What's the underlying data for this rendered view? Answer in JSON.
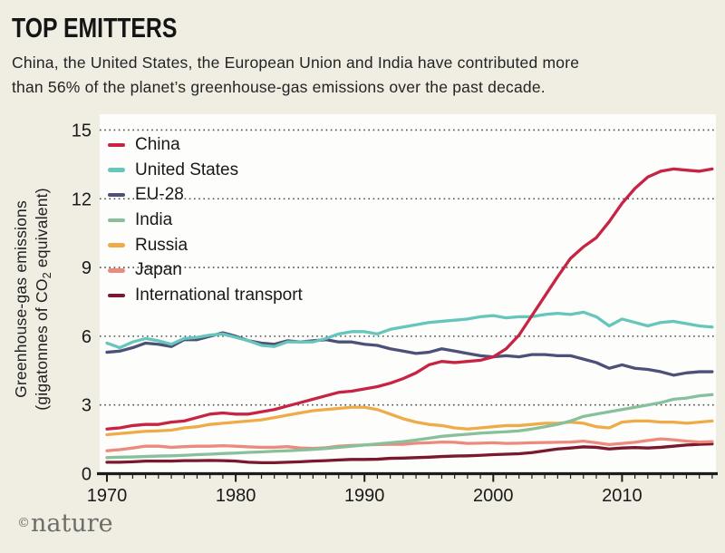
{
  "page": {
    "background": "#f0ede3",
    "plot_background": "#fdfdfb"
  },
  "header": {
    "title": "TOP EMITTERS",
    "subtitle_line1": "China, the United States, the European Union and India have contributed more",
    "subtitle_line2": "than 56% of the planet’s greenhouse-gas emissions over the past decade."
  },
  "footer": {
    "credit_symbol": "©",
    "credit_name": "nature"
  },
  "chart_data": {
    "type": "line",
    "title": "TOP EMITTERS",
    "xlabel": "",
    "ylabel_line1": "Greenhouse-gas emissions",
    "ylabel_line2_pre": "(gigatonnes of CO",
    "ylabel_line2_sub": "2",
    "ylabel_line2_post": " equivalent)",
    "xlim": [
      1970,
      2017
    ],
    "ylim": [
      0,
      15
    ],
    "xticks": [
      1970,
      1980,
      1990,
      2000,
      2010
    ],
    "yticks": [
      0,
      3,
      6,
      9,
      12,
      15
    ],
    "grid": "horizontal-dotted",
    "grid_color": "#4c4c4c",
    "axis_color": "#1c1c1c",
    "legend_position": "top-left-inside",
    "years": [
      1970,
      1971,
      1972,
      1973,
      1974,
      1975,
      1976,
      1977,
      1978,
      1979,
      1980,
      1981,
      1982,
      1983,
      1984,
      1985,
      1986,
      1987,
      1988,
      1989,
      1990,
      1991,
      1992,
      1993,
      1994,
      1995,
      1996,
      1997,
      1998,
      1999,
      2000,
      2001,
      2002,
      2003,
      2004,
      2005,
      2006,
      2007,
      2008,
      2009,
      2010,
      2011,
      2012,
      2013,
      2014,
      2015,
      2016,
      2017
    ],
    "series": [
      {
        "name": "China",
        "color": "#c72345",
        "values": [
          1.95,
          2.0,
          2.1,
          2.15,
          2.15,
          2.25,
          2.3,
          2.45,
          2.6,
          2.65,
          2.6,
          2.6,
          2.7,
          2.8,
          2.95,
          3.1,
          3.25,
          3.4,
          3.55,
          3.6,
          3.7,
          3.8,
          3.95,
          4.15,
          4.4,
          4.75,
          4.9,
          4.85,
          4.9,
          4.95,
          5.1,
          5.45,
          6.05,
          6.9,
          7.75,
          8.6,
          9.4,
          9.9,
          10.3,
          11.0,
          11.8,
          12.45,
          12.95,
          13.2,
          13.3,
          13.25,
          13.2,
          13.3
        ]
      },
      {
        "name": "United States",
        "color": "#66c6bc",
        "values": [
          5.7,
          5.5,
          5.75,
          5.9,
          5.8,
          5.65,
          5.9,
          5.95,
          6.05,
          6.1,
          5.95,
          5.8,
          5.6,
          5.55,
          5.75,
          5.75,
          5.75,
          5.9,
          6.1,
          6.2,
          6.2,
          6.1,
          6.3,
          6.4,
          6.5,
          6.6,
          6.65,
          6.7,
          6.75,
          6.85,
          6.9,
          6.8,
          6.85,
          6.85,
          6.95,
          7.0,
          6.95,
          7.05,
          6.85,
          6.45,
          6.75,
          6.6,
          6.45,
          6.6,
          6.65,
          6.55,
          6.45,
          6.4
        ]
      },
      {
        "name": "EU-28",
        "color": "#4d5078",
        "values": [
          5.3,
          5.35,
          5.5,
          5.7,
          5.65,
          5.55,
          5.85,
          5.85,
          6.0,
          6.15,
          6.0,
          5.8,
          5.7,
          5.65,
          5.8,
          5.75,
          5.8,
          5.85,
          5.75,
          5.75,
          5.65,
          5.6,
          5.45,
          5.35,
          5.25,
          5.3,
          5.45,
          5.35,
          5.25,
          5.15,
          5.1,
          5.15,
          5.1,
          5.2,
          5.2,
          5.15,
          5.15,
          5.0,
          4.85,
          4.6,
          4.75,
          4.6,
          4.55,
          4.45,
          4.3,
          4.4,
          4.45,
          4.45
        ]
      },
      {
        "name": "India",
        "color": "#87c09a",
        "values": [
          0.7,
          0.72,
          0.73,
          0.75,
          0.77,
          0.78,
          0.8,
          0.83,
          0.85,
          0.88,
          0.9,
          0.93,
          0.95,
          0.98,
          1.0,
          1.03,
          1.06,
          1.1,
          1.15,
          1.2,
          1.25,
          1.3,
          1.35,
          1.4,
          1.47,
          1.55,
          1.63,
          1.68,
          1.72,
          1.77,
          1.8,
          1.83,
          1.87,
          1.95,
          2.05,
          2.15,
          2.3,
          2.5,
          2.6,
          2.7,
          2.8,
          2.9,
          3.0,
          3.1,
          3.25,
          3.3,
          3.4,
          3.45
        ]
      },
      {
        "name": "Russia",
        "color": "#efab47",
        "values": [
          1.7,
          1.75,
          1.8,
          1.85,
          1.87,
          1.9,
          2.0,
          2.05,
          2.15,
          2.2,
          2.25,
          2.3,
          2.35,
          2.45,
          2.55,
          2.65,
          2.75,
          2.8,
          2.85,
          2.9,
          2.9,
          2.8,
          2.6,
          2.4,
          2.25,
          2.15,
          2.1,
          2.0,
          1.95,
          2.0,
          2.05,
          2.1,
          2.1,
          2.15,
          2.2,
          2.2,
          2.25,
          2.2,
          2.05,
          2.0,
          2.25,
          2.3,
          2.3,
          2.25,
          2.25,
          2.2,
          2.25,
          2.3
        ]
      },
      {
        "name": "Japan",
        "color": "#ec8a7e",
        "values": [
          1.0,
          1.05,
          1.12,
          1.2,
          1.2,
          1.15,
          1.18,
          1.2,
          1.2,
          1.22,
          1.2,
          1.17,
          1.15,
          1.15,
          1.18,
          1.12,
          1.1,
          1.13,
          1.2,
          1.23,
          1.25,
          1.27,
          1.28,
          1.28,
          1.33,
          1.35,
          1.38,
          1.37,
          1.32,
          1.33,
          1.35,
          1.32,
          1.33,
          1.35,
          1.36,
          1.37,
          1.38,
          1.42,
          1.35,
          1.27,
          1.32,
          1.37,
          1.45,
          1.52,
          1.48,
          1.42,
          1.38,
          1.4
        ]
      },
      {
        "name": "International transport",
        "color": "#7a182e",
        "values": [
          0.5,
          0.5,
          0.52,
          0.55,
          0.55,
          0.55,
          0.57,
          0.57,
          0.58,
          0.57,
          0.55,
          0.5,
          0.48,
          0.48,
          0.5,
          0.52,
          0.55,
          0.57,
          0.6,
          0.62,
          0.62,
          0.63,
          0.67,
          0.68,
          0.7,
          0.72,
          0.75,
          0.77,
          0.78,
          0.8,
          0.83,
          0.85,
          0.87,
          0.92,
          1.0,
          1.08,
          1.12,
          1.17,
          1.15,
          1.08,
          1.12,
          1.14,
          1.12,
          1.15,
          1.2,
          1.25,
          1.28,
          1.3
        ]
      }
    ]
  }
}
